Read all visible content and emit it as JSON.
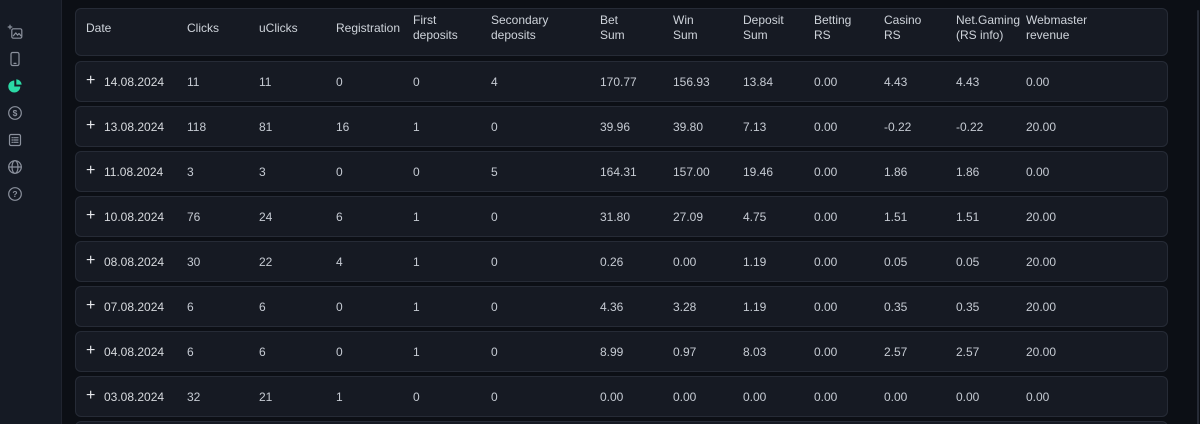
{
  "theme": {
    "accent": "#2bd9a5",
    "page_bg": "#0c0f15",
    "sidebar_bg": "#151a24",
    "card_bg": "#161a23",
    "card_border": "#262b36",
    "icon_color": "#8b919d"
  },
  "sidebar": {
    "items": [
      {
        "icon": "image-plus-icon",
        "active": false
      },
      {
        "icon": "smartphone-icon",
        "active": false
      },
      {
        "icon": "pie-chart-icon",
        "active": true
      },
      {
        "icon": "dollar-circle-icon",
        "active": false
      },
      {
        "icon": "list-icon",
        "active": false
      },
      {
        "icon": "news-globe-icon",
        "active": false
      },
      {
        "icon": "question-circle-icon",
        "active": false
      }
    ]
  },
  "table": {
    "expand_symbol": "+",
    "columns": [
      "Date",
      "Clicks",
      "uClicks",
      "Registration",
      "First\ndeposits",
      "Secondary\ndeposits",
      "Bet\nSum",
      "Win\nSum",
      "Deposit\nSum",
      "Betting\nRS",
      "Casino\nRS",
      "Net.Gaming\n(RS info)",
      "Webmaster\nrevenue"
    ],
    "value_keys": [
      "clicks",
      "uclicks",
      "registration",
      "first_deposits",
      "secondary_deposits",
      "bet_sum",
      "win_sum",
      "deposit_sum",
      "betting_rs",
      "casino_rs",
      "net_gaming",
      "webmaster_revenue"
    ],
    "rows": [
      {
        "date": "14.08.2024",
        "values": [
          "11",
          "11",
          "0",
          "0",
          "4",
          "170.77",
          "156.93",
          "13.84",
          "0.00",
          "4.43",
          "4.43",
          "0.00"
        ]
      },
      {
        "date": "13.08.2024",
        "values": [
          "118",
          "81",
          "16",
          "1",
          "0",
          "39.96",
          "39.80",
          "7.13",
          "0.00",
          "-0.22",
          "-0.22",
          "20.00"
        ]
      },
      {
        "date": "11.08.2024",
        "values": [
          "3",
          "3",
          "0",
          "0",
          "5",
          "164.31",
          "157.00",
          "19.46",
          "0.00",
          "1.86",
          "1.86",
          "0.00"
        ]
      },
      {
        "date": "10.08.2024",
        "values": [
          "76",
          "24",
          "6",
          "1",
          "0",
          "31.80",
          "27.09",
          "4.75",
          "0.00",
          "1.51",
          "1.51",
          "20.00"
        ]
      },
      {
        "date": "08.08.2024",
        "values": [
          "30",
          "22",
          "4",
          "1",
          "0",
          "0.26",
          "0.00",
          "1.19",
          "0.00",
          "0.05",
          "0.05",
          "20.00"
        ]
      },
      {
        "date": "07.08.2024",
        "values": [
          "6",
          "6",
          "0",
          "1",
          "0",
          "4.36",
          "3.28",
          "1.19",
          "0.00",
          "0.35",
          "0.35",
          "20.00"
        ]
      },
      {
        "date": "04.08.2024",
        "values": [
          "6",
          "6",
          "0",
          "1",
          "0",
          "8.99",
          "0.97",
          "8.03",
          "0.00",
          "2.57",
          "2.57",
          "20.00"
        ]
      },
      {
        "date": "03.08.2024",
        "values": [
          "32",
          "21",
          "1",
          "0",
          "0",
          "0.00",
          "0.00",
          "0.00",
          "0.00",
          "0.00",
          "0.00",
          "0.00"
        ]
      }
    ]
  }
}
